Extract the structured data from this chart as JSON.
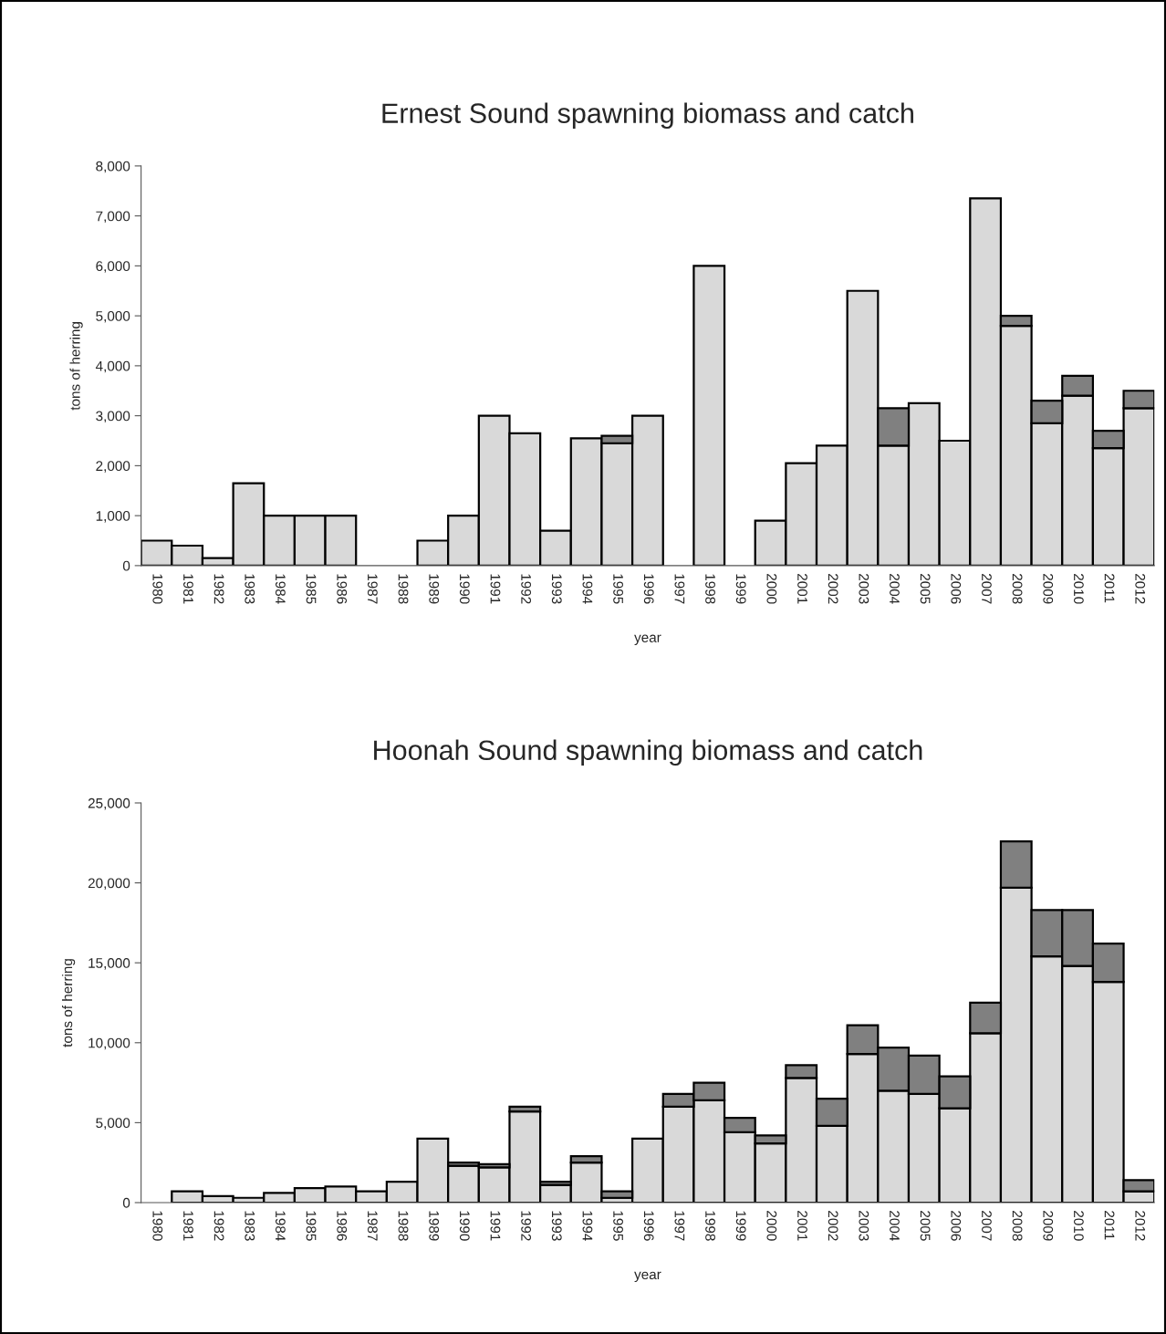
{
  "chart_data": [
    {
      "type": "bar",
      "title": "Ernest Sound spawning biomass and catch",
      "xlabel": "year",
      "ylabel": "tons of herring",
      "stacked": true,
      "categories": [
        "1980",
        "1981",
        "1982",
        "1983",
        "1984",
        "1985",
        "1986",
        "1987",
        "1988",
        "1989",
        "1990",
        "1991",
        "1992",
        "1993",
        "1994",
        "1995",
        "1996",
        "1997",
        "1998",
        "1999",
        "2000",
        "2001",
        "2002",
        "2003",
        "2004",
        "2005",
        "2006",
        "2007",
        "2008",
        "2009",
        "2010",
        "2011",
        "2012"
      ],
      "series": [
        {
          "color": "#d9d9d9",
          "values": [
            500,
            400,
            150,
            1650,
            1000,
            1000,
            1000,
            null,
            null,
            500,
            1000,
            3000,
            2650,
            700,
            2550,
            2450,
            3000,
            null,
            6000,
            null,
            900,
            2050,
            2400,
            5500,
            2400,
            3250,
            2500,
            7350,
            4800,
            2850,
            3400,
            2350,
            3150
          ]
        },
        {
          "color": "#808080",
          "values": [
            null,
            null,
            null,
            null,
            null,
            null,
            null,
            null,
            null,
            null,
            null,
            null,
            null,
            null,
            null,
            150,
            null,
            null,
            null,
            null,
            null,
            null,
            null,
            null,
            750,
            null,
            null,
            null,
            200,
            450,
            400,
            350,
            350
          ]
        }
      ],
      "ylim": [
        0,
        8000
      ],
      "yticks": [
        0,
        {
          "value": 1000,
          "label": "1,000"
        },
        {
          "value": 2000,
          "label": "2,000"
        },
        {
          "value": 3000,
          "label": "3,000"
        },
        {
          "value": 4000,
          "label": "4,000"
        },
        {
          "value": 5000,
          "label": "5,000"
        },
        {
          "value": 6000,
          "label": "6,000"
        },
        {
          "value": 7000,
          "label": "7,000"
        },
        {
          "value": 8000,
          "label": "8,000"
        }
      ]
    },
    {
      "type": "bar",
      "title": "Hoonah Sound spawning biomass and catch",
      "xlabel": "year",
      "ylabel": "tons of herring",
      "stacked": true,
      "categories": [
        "1980",
        "1981",
        "1982",
        "1983",
        "1984",
        "1985",
        "1986",
        "1987",
        "1988",
        "1989",
        "1990",
        "1991",
        "1992",
        "1993",
        "1994",
        "1995",
        "1996",
        "1997",
        "1998",
        "1999",
        "2000",
        "2001",
        "2002",
        "2003",
        "2004",
        "2005",
        "2006",
        "2007",
        "2008",
        "2009",
        "2010",
        "2011",
        "2012"
      ],
      "series": [
        {
          "color": "#d9d9d9",
          "values": [
            null,
            700,
            400,
            300,
            600,
            900,
            1000,
            700,
            1300,
            4000,
            2300,
            2200,
            5700,
            1100,
            2500,
            300,
            4000,
            6000,
            6400,
            4400,
            3700,
            7800,
            4800,
            9300,
            7000,
            6800,
            5900,
            10600,
            19700,
            15400,
            14800,
            13800,
            700
          ]
        },
        {
          "color": "#808080",
          "values": [
            null,
            null,
            null,
            null,
            null,
            null,
            null,
            null,
            null,
            null,
            200,
            200,
            300,
            200,
            400,
            400,
            null,
            800,
            1100,
            900,
            500,
            800,
            1700,
            1800,
            2700,
            2400,
            2000,
            1900,
            2900,
            2900,
            3500,
            2400,
            700
          ]
        }
      ],
      "ylim": [
        0,
        25000
      ],
      "yticks": [
        0,
        {
          "value": 5000,
          "label": "5,000"
        },
        {
          "value": 10000,
          "label": "10,000"
        },
        {
          "value": 15000,
          "label": "15,000"
        },
        {
          "value": 20000,
          "label": "20,000"
        },
        {
          "value": 25000,
          "label": "25,000"
        }
      ]
    }
  ]
}
